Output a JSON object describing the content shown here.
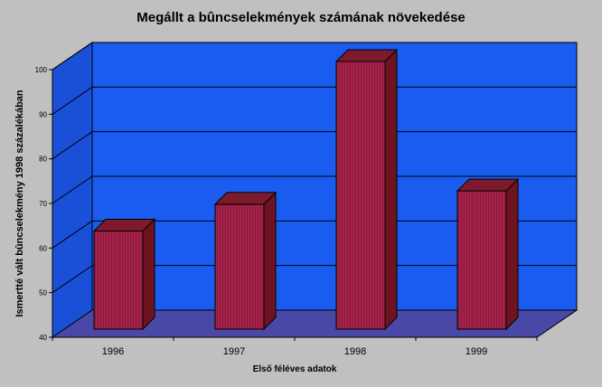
{
  "chart_data": {
    "type": "bar",
    "title": "Megállt a bûncselekmények számának növekedése",
    "xlabel": "Első féléves adatok",
    "ylabel": "Ismertté vált bûncselekmény 1998 százalékában",
    "categories": [
      "1996",
      "1997",
      "1998",
      "1999"
    ],
    "values": [
      62,
      68,
      100,
      71
    ],
    "ylim": [
      40,
      100
    ],
    "yticks": [
      "40",
      "50",
      "60",
      "70",
      "80",
      "90",
      "100"
    ],
    "grid": true,
    "legend": "none",
    "three_d": true,
    "colors": {
      "bar_front": "#a5224a",
      "bar_side": "#6e1420",
      "bar_top": "#7d1a2c",
      "wall": "#1a5cf0",
      "floor": "#4a48a6",
      "side_wall": "#1a50d8",
      "background": "#c0c0c0"
    }
  }
}
